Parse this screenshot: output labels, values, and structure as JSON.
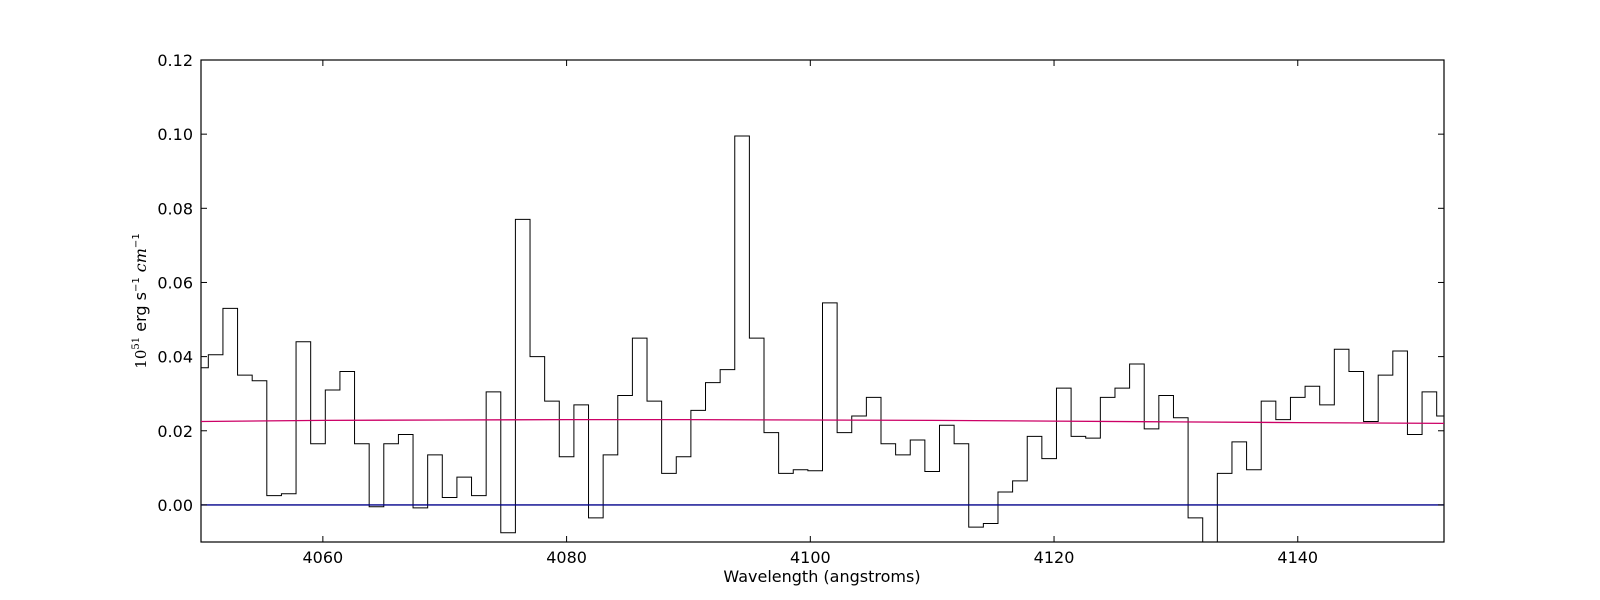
{
  "chart_data": {
    "type": "line",
    "title": "",
    "xlabel": "Wavelength (angstroms)",
    "ylabel": {
      "base": "10",
      "exp": "51",
      "unit1": "erg s",
      "unit1_exp": "−1",
      "unit2": "cm",
      "unit2_exp": "−1"
    },
    "xlim": [
      4050,
      4152
    ],
    "ylim": [
      -0.01,
      0.12
    ],
    "xticks": [
      4060,
      4080,
      4100,
      4120,
      4140
    ],
    "yticks": [
      0.0,
      0.02,
      0.04,
      0.06,
      0.08,
      0.1,
      0.12
    ],
    "xtick_labels": [
      "4060",
      "4080",
      "4100",
      "4120",
      "4140"
    ],
    "ytick_labels": [
      "0.00",
      "0.02",
      "0.04",
      "0.06",
      "0.08",
      "0.10",
      "0.12"
    ],
    "grid": false,
    "series": [
      {
        "style": "steps-mid",
        "color": "#000000",
        "x": [
          4050.0,
          4051.2,
          4052.4,
          4053.6,
          4054.8,
          4056.0,
          4057.2,
          4058.4,
          4059.6,
          4060.8,
          4062.0,
          4063.2,
          4064.4,
          4065.6,
          4066.8,
          4068.0,
          4069.2,
          4070.4,
          4071.6,
          4072.8,
          4074.0,
          4075.2,
          4076.4,
          4077.6,
          4078.8,
          4080.0,
          4081.2,
          4082.4,
          4083.6,
          4084.8,
          4086.0,
          4087.2,
          4088.4,
          4089.6,
          4090.8,
          4092.0,
          4093.2,
          4094.4,
          4095.6,
          4096.8,
          4098.0,
          4099.2,
          4100.4,
          4101.6,
          4102.8,
          4104.0,
          4105.2,
          4106.4,
          4107.6,
          4108.8,
          4110.0,
          4111.2,
          4112.4,
          4113.6,
          4114.8,
          4116.0,
          4117.2,
          4118.4,
          4119.6,
          4120.8,
          4122.0,
          4123.2,
          4124.4,
          4125.6,
          4126.8,
          4128.0,
          4129.2,
          4130.4,
          4131.6,
          4132.8,
          4134.0,
          4135.2,
          4136.4,
          4137.6,
          4138.8,
          4140.0,
          4141.2,
          4142.4,
          4143.6,
          4144.8,
          4146.0,
          4147.2,
          4148.4,
          4149.6,
          4150.8,
          4152.0
        ],
        "y": [
          0.037,
          0.0405,
          0.053,
          0.035,
          0.0335,
          0.0025,
          0.003,
          0.044,
          0.0165,
          0.031,
          0.036,
          0.0165,
          -0.0005,
          0.0165,
          0.019,
          -0.0008,
          0.0135,
          0.002,
          0.0075,
          0.0025,
          0.0305,
          -0.0075,
          0.077,
          0.04,
          0.028,
          0.013,
          0.027,
          -0.0035,
          0.0135,
          0.0295,
          0.045,
          0.028,
          0.0085,
          0.013,
          0.0255,
          0.033,
          0.0365,
          0.0995,
          0.045,
          0.0195,
          0.0085,
          0.0095,
          0.0092,
          0.0545,
          0.0195,
          0.024,
          0.029,
          0.0165,
          0.0135,
          0.0175,
          0.009,
          0.0215,
          0.0165,
          -0.006,
          -0.005,
          0.0035,
          0.0065,
          0.0185,
          0.0125,
          0.0315,
          0.0185,
          0.018,
          0.029,
          0.0315,
          0.038,
          0.0205,
          0.0295,
          0.0235,
          -0.0035,
          -0.0105,
          0.0085,
          0.017,
          0.0095,
          0.028,
          0.023,
          0.029,
          0.032,
          0.027,
          0.042,
          0.036,
          0.0225,
          0.035,
          0.0415,
          0.019,
          0.0305,
          0.024
        ]
      },
      {
        "style": "line",
        "color": "#cc0066",
        "x": [
          4050,
          4060,
          4070,
          4080,
          4090,
          4100,
          4110,
          4120,
          4130,
          4140,
          4152
        ],
        "y": [
          0.0225,
          0.0228,
          0.0229,
          0.023,
          0.023,
          0.0229,
          0.0228,
          0.0226,
          0.0224,
          0.0222,
          0.022
        ]
      },
      {
        "style": "line",
        "color": "#00008b",
        "x": [
          4050,
          4152
        ],
        "y": [
          0.0,
          0.0
        ]
      }
    ]
  }
}
